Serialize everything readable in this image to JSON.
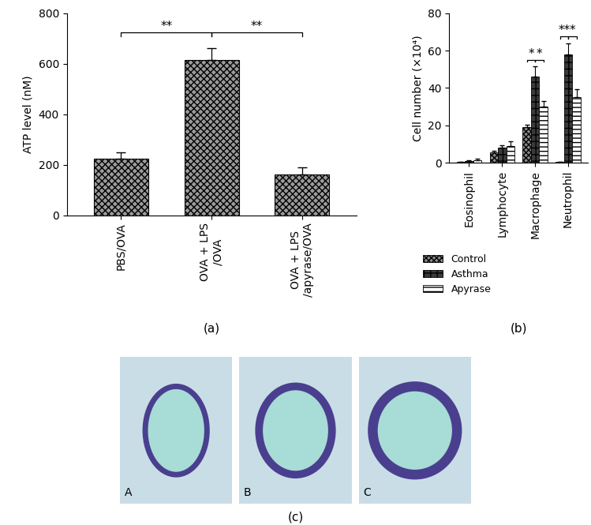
{
  "chart_data": [
    {
      "type": "bar",
      "caption": "(a)",
      "categories": [
        "PBS/OVA",
        "OVA + LPS\n/OVA",
        "OVA + LPS\n/apyrase/OVA"
      ],
      "values": [
        225,
        615,
        160
      ],
      "errors": [
        25,
        45,
        30
      ],
      "color": "#9a9a9a",
      "y_label": "ATP level (nM)",
      "ylim": [
        0,
        800
      ],
      "yticks": [
        0,
        200,
        400,
        600,
        800
      ],
      "annotations": [
        {
          "from": "PBS/OVA",
          "to": "OVA + LPS\n/OVA",
          "text": "**"
        },
        {
          "from": "OVA + LPS\n/OVA",
          "to": "OVA + LPS\n/apyrase/OVA",
          "text": "**"
        }
      ]
    },
    {
      "type": "grouped_bar",
      "caption": "(b)",
      "categories": [
        "Eosinophil",
        "Lymphocyte",
        "Macrophage",
        "Neutrophil"
      ],
      "series": [
        {
          "name": "Control",
          "color": "#8a8a8a",
          "values": [
            0.3,
            5.5,
            19,
            0.3
          ],
          "errors": [
            0.2,
            1,
            1.5,
            0.2
          ]
        },
        {
          "name": "Asthma",
          "color": "#3a3a3a",
          "values": [
            1,
            8,
            46,
            58
          ],
          "errors": [
            0.5,
            1.5,
            5.5,
            6
          ]
        },
        {
          "name": "Apyrase",
          "color": "#ffffff",
          "values": [
            1.5,
            9,
            30,
            35
          ],
          "errors": [
            0.5,
            2.5,
            3,
            4.5
          ]
        }
      ],
      "y_label": "Cell number (×10⁴)",
      "ylim": [
        0,
        80
      ],
      "yticks": [
        0,
        20,
        40,
        60,
        80
      ],
      "legend": "below",
      "annotations": [
        {
          "category": "Macrophage",
          "from": "Control",
          "to": "Asthma",
          "text": "*"
        },
        {
          "category": "Macrophage",
          "from": "Asthma",
          "to": "Apyrase",
          "text": "*"
        },
        {
          "category": "Neutrophil",
          "from": "Control",
          "to": "Asthma",
          "text": "**"
        },
        {
          "category": "Neutrophil",
          "from": "Asthma",
          "to": "Apyrase",
          "text": "*"
        }
      ]
    }
  ],
  "images": {
    "caption": "(c)",
    "panels": [
      "A",
      "B",
      "C"
    ]
  }
}
